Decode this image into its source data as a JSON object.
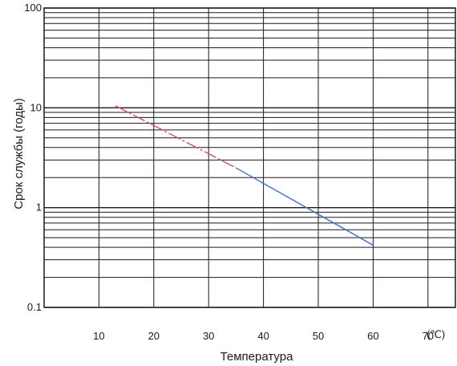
{
  "chart_data": {
    "type": "line",
    "xlabel": "Температура",
    "ylabel": "Срок службы (годы)",
    "x_unit": "(℃)",
    "x_ticks": [
      10,
      20,
      30,
      40,
      50,
      60,
      70
    ],
    "x_range": [
      0,
      75
    ],
    "y_scale": "log",
    "y_range": [
      0.1,
      100
    ],
    "y_ticks": [
      {
        "value": 0.1,
        "label": "0.1"
      },
      {
        "value": 1,
        "label": "1"
      },
      {
        "value": 10,
        "label": "10"
      },
      {
        "value": 100,
        "label": "100"
      }
    ],
    "grid": true,
    "series": [
      {
        "style": "dashed",
        "color": "#e0457b",
        "x": [
          13,
          35
        ],
        "y": [
          10.5,
          2.5
        ]
      },
      {
        "style": "solid",
        "color": "#3d6fc0",
        "x": [
          35,
          60
        ],
        "y": [
          2.5,
          0.42
        ]
      }
    ]
  }
}
